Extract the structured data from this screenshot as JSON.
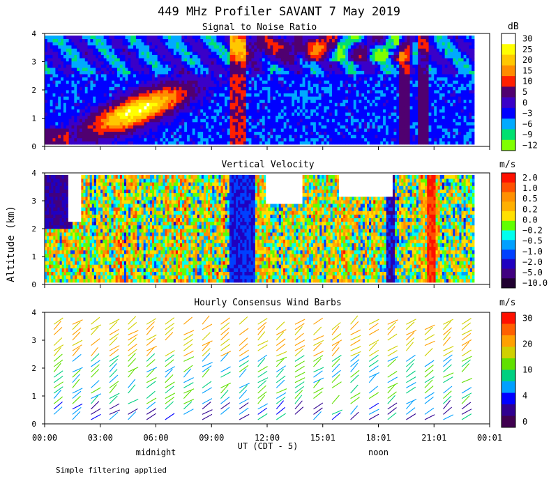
{
  "figure": {
    "title": "449 MHz Profiler SAVANT  7 May 2019",
    "ylabel": "Altitude (km)",
    "xlabel": "UT  (CDT - 5)",
    "footnote": "Simple filtering applied",
    "local_labels": [
      {
        "text": "midnight",
        "at_hour": 6
      },
      {
        "text": "noon",
        "at_hour": 18
      }
    ],
    "x_ticks": [
      "00:00",
      "03:00",
      "06:00",
      "09:00",
      "12:00",
      "15:01",
      "18:01",
      "21:01",
      "00:01"
    ],
    "x_tick_hours": [
      0,
      3,
      6,
      9,
      12,
      15,
      18,
      21,
      24
    ],
    "xlim_hours": [
      0,
      24
    ]
  },
  "chart_data": [
    {
      "type": "heatmap",
      "title": "Signal to Noise Ratio",
      "ylabel": "Altitude (km)",
      "ylim": [
        0,
        4
      ],
      "y_ticks": [
        "0",
        "1",
        "2",
        "3",
        "4"
      ],
      "colorbar": {
        "unit": "dB",
        "labels": [
          "30",
          "25",
          "20",
          "15",
          "10",
          "5",
          "0",
          "−3",
          "−6",
          "−9",
          "−12"
        ],
        "colors": [
          "#ffffff",
          "#ffff00",
          "#ffc800",
          "#ff8c00",
          "#ff2000",
          "#500070",
          "#3a00c8",
          "#0000ff",
          "#00aaff",
          "#00e070",
          "#80ff00"
        ]
      }
    },
    {
      "type": "heatmap",
      "title": "Vertical Velocity",
      "ylabel": "Altitude (km)",
      "ylim": [
        0,
        4
      ],
      "y_ticks": [
        "0",
        "1",
        "2",
        "3",
        "4"
      ],
      "colorbar": {
        "unit": "m/s",
        "labels": [
          "2.0",
          "1.0",
          "0.5",
          "0.2",
          "0.0",
          "−0.2",
          "−0.5",
          "−1.0",
          "−2.0",
          "−5.0",
          "−10.0"
        ],
        "colors": [
          "#ff1000",
          "#ff5000",
          "#ff9000",
          "#ffb000",
          "#ffe000",
          "#60ff00",
          "#00ffee",
          "#00a0ff",
          "#0040ff",
          "#2000c0",
          "#400080",
          "#200030"
        ]
      }
    },
    {
      "type": "scatter",
      "title": "Hourly Consensus Wind Barbs",
      "ylabel": "Altitude (km)",
      "ylim": [
        0,
        4
      ],
      "y_ticks": [
        "0",
        "1",
        "2",
        "3",
        "4"
      ],
      "colorbar": {
        "unit": "m/s",
        "labels": [
          "30",
          "20",
          "10",
          "4",
          "0"
        ],
        "colors": [
          "#ff1000",
          "#ff6000",
          "#ffa000",
          "#d0d000",
          "#60e000",
          "#00d080",
          "#00a0ff",
          "#0000ff",
          "#300090",
          "#400050"
        ]
      }
    }
  ]
}
